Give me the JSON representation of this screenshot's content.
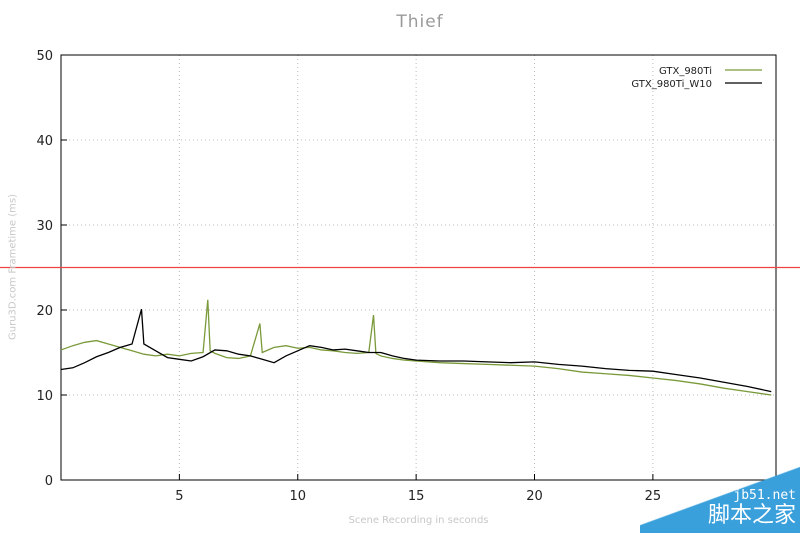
{
  "chart_data": {
    "type": "line",
    "title": "Thief",
    "xlabel": "Scene Recording in seconds",
    "ylabel": "Guru3D.com Frametime (ms)",
    "xlim": [
      0,
      30.2
    ],
    "ylim": [
      0,
      50
    ],
    "xticks": [
      5,
      10,
      15,
      20,
      25
    ],
    "yticks": [
      0,
      10,
      20,
      30,
      40,
      50
    ],
    "grid": true,
    "legend": "top-right",
    "reference_line": {
      "y": 25,
      "color": "#ee4444"
    },
    "series": [
      {
        "name": "GTX_980Ti",
        "color": "#7a9a3a",
        "points": [
          [
            0,
            15.3
          ],
          [
            0.5,
            15.8
          ],
          [
            1,
            16.2
          ],
          [
            1.5,
            16.4
          ],
          [
            2,
            16.0
          ],
          [
            2.5,
            15.6
          ],
          [
            3,
            15.2
          ],
          [
            3.5,
            14.8
          ],
          [
            4,
            14.6
          ],
          [
            4.5,
            14.8
          ],
          [
            5,
            14.6
          ],
          [
            5.5,
            14.9
          ],
          [
            6,
            15.0
          ],
          [
            6.2,
            21.2
          ],
          [
            6.3,
            15.2
          ],
          [
            6.5,
            14.9
          ],
          [
            7,
            14.4
          ],
          [
            7.5,
            14.3
          ],
          [
            8,
            14.6
          ],
          [
            8.4,
            18.4
          ],
          [
            8.5,
            15.0
          ],
          [
            9,
            15.6
          ],
          [
            9.5,
            15.8
          ],
          [
            10,
            15.5
          ],
          [
            10.5,
            15.6
          ],
          [
            11,
            15.3
          ],
          [
            11.5,
            15.2
          ],
          [
            12,
            15.0
          ],
          [
            12.5,
            14.9
          ],
          [
            13,
            15.0
          ],
          [
            13.2,
            19.4
          ],
          [
            13.3,
            14.9
          ],
          [
            13.5,
            14.6
          ],
          [
            14,
            14.3
          ],
          [
            14.5,
            14.1
          ],
          [
            15,
            14.0
          ],
          [
            16,
            13.8
          ],
          [
            17,
            13.7
          ],
          [
            18,
            13.6
          ],
          [
            19,
            13.5
          ],
          [
            20,
            13.4
          ],
          [
            21,
            13.1
          ],
          [
            22,
            12.7
          ],
          [
            23,
            12.5
          ],
          [
            24,
            12.3
          ],
          [
            25,
            12.0
          ],
          [
            26,
            11.7
          ],
          [
            27,
            11.3
          ],
          [
            28,
            10.8
          ],
          [
            29,
            10.4
          ],
          [
            30,
            10.0
          ]
        ]
      },
      {
        "name": "GTX_980Ti_W10",
        "color": "#000000",
        "points": [
          [
            0,
            13.0
          ],
          [
            0.5,
            13.2
          ],
          [
            1,
            13.8
          ],
          [
            1.5,
            14.5
          ],
          [
            2,
            15.0
          ],
          [
            2.5,
            15.6
          ],
          [
            3,
            16.0
          ],
          [
            3.4,
            20.1
          ],
          [
            3.5,
            16.0
          ],
          [
            4,
            15.2
          ],
          [
            4.5,
            14.4
          ],
          [
            5,
            14.2
          ],
          [
            5.5,
            14.0
          ],
          [
            6,
            14.5
          ],
          [
            6.5,
            15.3
          ],
          [
            7,
            15.2
          ],
          [
            7.5,
            14.8
          ],
          [
            8,
            14.6
          ],
          [
            8.5,
            14.2
          ],
          [
            9,
            13.8
          ],
          [
            9.5,
            14.6
          ],
          [
            10,
            15.2
          ],
          [
            10.5,
            15.8
          ],
          [
            11,
            15.6
          ],
          [
            11.5,
            15.3
          ],
          [
            12,
            15.4
          ],
          [
            12.5,
            15.2
          ],
          [
            13,
            15.0
          ],
          [
            13.5,
            15.0
          ],
          [
            14,
            14.6
          ],
          [
            14.5,
            14.3
          ],
          [
            15,
            14.1
          ],
          [
            16,
            14.0
          ],
          [
            17,
            14.0
          ],
          [
            18,
            13.9
          ],
          [
            19,
            13.8
          ],
          [
            20,
            13.9
          ],
          [
            21,
            13.6
          ],
          [
            22,
            13.4
          ],
          [
            23,
            13.1
          ],
          [
            24,
            12.9
          ],
          [
            25,
            12.8
          ],
          [
            26,
            12.4
          ],
          [
            27,
            12.0
          ],
          [
            28,
            11.5
          ],
          [
            29,
            11.0
          ],
          [
            30,
            10.4
          ]
        ]
      }
    ]
  },
  "watermark": {
    "line1": "jb51.net",
    "line2": "脚本之家"
  }
}
